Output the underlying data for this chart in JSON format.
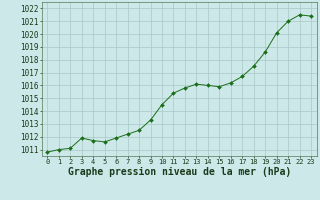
{
  "x": [
    0,
    1,
    2,
    3,
    4,
    5,
    6,
    7,
    8,
    9,
    10,
    11,
    12,
    13,
    14,
    15,
    16,
    17,
    18,
    19,
    20,
    21,
    22,
    23
  ],
  "y": [
    1010.8,
    1011.0,
    1011.1,
    1011.9,
    1011.7,
    1011.6,
    1011.9,
    1012.2,
    1012.5,
    1013.3,
    1014.5,
    1015.4,
    1015.8,
    1016.1,
    1016.0,
    1015.9,
    1016.2,
    1016.7,
    1017.5,
    1018.6,
    1020.1,
    1021.0,
    1021.5,
    1021.4
  ],
  "ylim": [
    1010.5,
    1022.5
  ],
  "yticks": [
    1011,
    1012,
    1013,
    1014,
    1015,
    1016,
    1017,
    1018,
    1019,
    1020,
    1021,
    1022
  ],
  "xticks": [
    0,
    1,
    2,
    3,
    4,
    5,
    6,
    7,
    8,
    9,
    10,
    11,
    12,
    13,
    14,
    15,
    16,
    17,
    18,
    19,
    20,
    21,
    22,
    23
  ],
  "xlabel": "Graphe pression niveau de la mer (hPa)",
  "line_color": "#1a6e1a",
  "marker_color": "#1a6e1a",
  "bg_color": "#cde8e8",
  "grid_color": "#aac8c8",
  "xlabel_fontsize": 7,
  "ytick_fontsize": 5.5,
  "xtick_fontsize": 5.0
}
